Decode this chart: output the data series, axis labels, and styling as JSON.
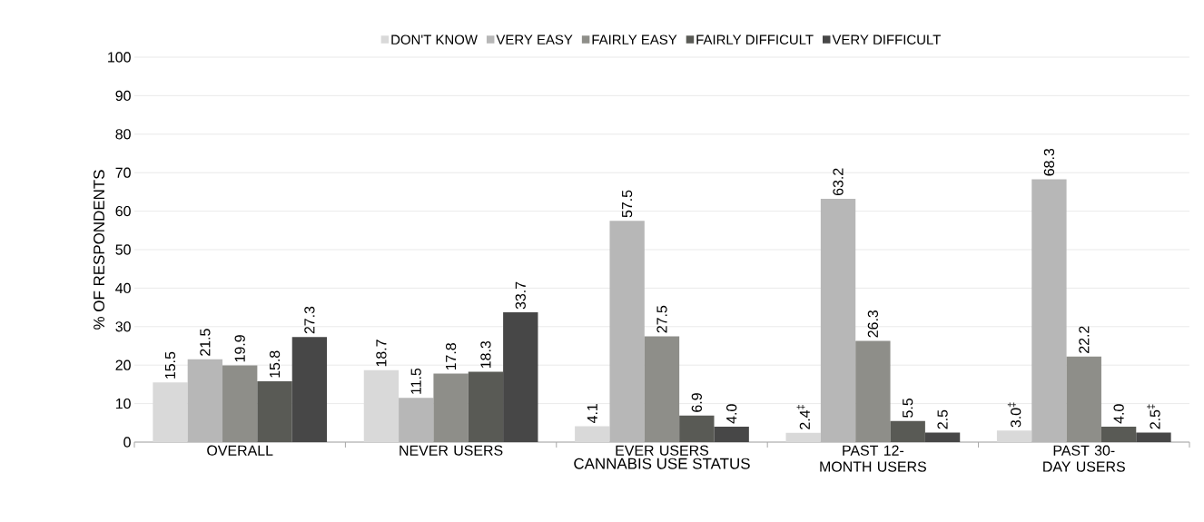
{
  "chart_data": {
    "type": "bar",
    "xlabel": "CANNABIS USE STATUS",
    "ylabel": "% OF RESPONDENTS",
    "categories": [
      "OVERALL",
      "NEVER USERS",
      "EVER USERS",
      "PAST 12-MONTH USERS",
      "PAST 30-DAY USERS"
    ],
    "series": [
      {
        "name": "DON'T KNOW",
        "color": "#d9d9d9",
        "values": [
          15.5,
          18.7,
          4.1,
          2.4,
          3.0
        ],
        "value_labels": [
          "15.5",
          "18.7",
          "4.1",
          "2.4$^{‡}$",
          "3.0$^{‡}$"
        ]
      },
      {
        "name": "VERY EASY",
        "color": "#b7b7b7",
        "values": [
          21.5,
          11.5,
          57.5,
          63.2,
          68.3
        ],
        "value_labels": [
          "21.5",
          "11.5",
          "57.5",
          "63.2",
          "68.3"
        ]
      },
      {
        "name": "FAIRLY EASY",
        "color": "#8e8e89",
        "values": [
          19.9,
          17.8,
          27.5,
          26.3,
          22.2
        ],
        "value_labels": [
          "19.9",
          "17.8",
          "27.5",
          "26.3",
          "22.2"
        ]
      },
      {
        "name": "FAIRLY DIFFICULT",
        "color": "#595a55",
        "values": [
          15.8,
          18.3,
          6.9,
          5.5,
          4.0
        ],
        "value_labels": [
          "15.8",
          "18.3",
          "6.9",
          "5.5",
          "4.0"
        ]
      },
      {
        "name": "VERY DIFFICULT",
        "color": "#474747",
        "values": [
          27.3,
          33.7,
          4.0,
          2.5,
          2.5
        ],
        "value_labels": [
          "27.3",
          "33.7",
          "4.0",
          "2.5",
          "2.5$^{‡}$"
        ]
      }
    ],
    "ylim": [
      0,
      100
    ],
    "yticks": [
      0,
      10,
      20,
      30,
      40,
      50,
      60,
      70,
      80,
      90,
      100
    ],
    "grid": "y",
    "legend": "top"
  }
}
